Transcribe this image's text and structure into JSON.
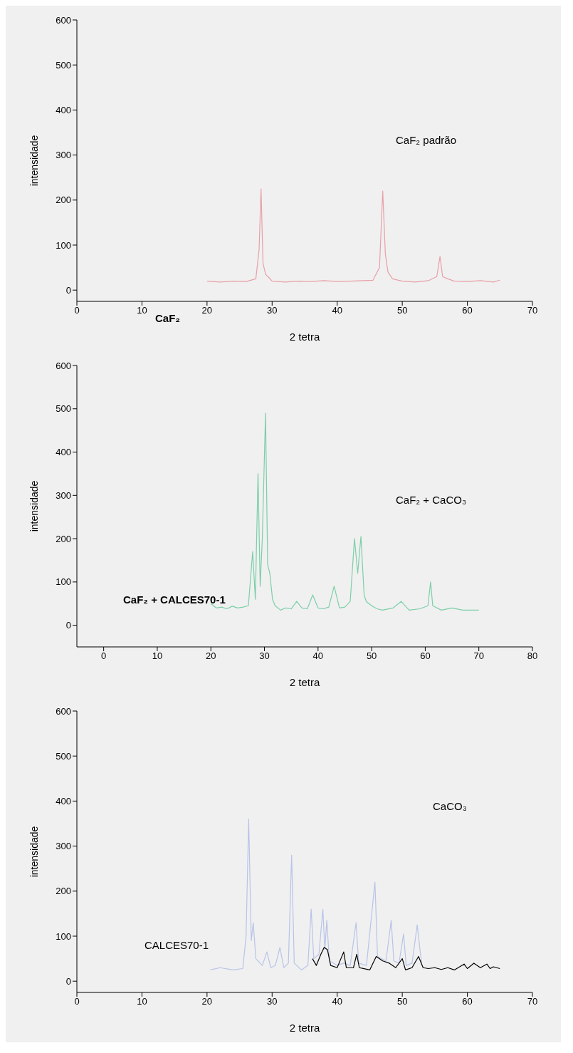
{
  "chart_data": [
    {
      "type": "line",
      "xlabel": "2 tetra",
      "ylabel": "intensidade",
      "xlim": [
        0,
        70
      ],
      "xticks": [
        0,
        10,
        20,
        30,
        40,
        50,
        60,
        70
      ],
      "ylim": [
        -25,
        600
      ],
      "yticks": [
        0,
        100,
        200,
        300,
        400,
        500,
        600
      ],
      "annotations": [
        "CaF₂  padrão",
        "CaF₂"
      ],
      "series": [
        {
          "color": "#e8a0a8",
          "x": [
            20,
            22,
            24,
            26,
            27.5,
            28,
            28.3,
            28.6,
            29,
            29.5,
            30,
            32,
            34,
            36,
            38,
            40,
            42,
            44,
            45.5,
            46.5,
            47,
            47.4,
            47.8,
            48.5,
            50,
            52,
            54,
            55.3,
            55.8,
            56.2,
            57,
            58,
            60,
            62,
            64,
            65
          ],
          "values": [
            20,
            18,
            20,
            19,
            25,
            90,
            225,
            60,
            35,
            28,
            20,
            18,
            20,
            19,
            21,
            19,
            20,
            21,
            22,
            50,
            220,
            80,
            40,
            25,
            20,
            18,
            21,
            30,
            75,
            30,
            25,
            20,
            19,
            21,
            18,
            22
          ]
        }
      ]
    },
    {
      "type": "line",
      "xlabel": "2 tetra",
      "ylabel": "intensidade",
      "xlim": [
        -5,
        80
      ],
      "xticks": [
        0,
        10,
        20,
        30,
        40,
        50,
        60,
        70,
        80
      ],
      "ylim": [
        -50,
        600
      ],
      "yticks": [
        0,
        100,
        200,
        300,
        400,
        500,
        600
      ],
      "annotations": [
        "CaF₂  +  CaCO₃",
        "CaF₂ + CALCES70-1"
      ],
      "series": [
        {
          "color": "#7ccfa8",
          "x": [
            20,
            21,
            22,
            23,
            24,
            25,
            26,
            27,
            27.8,
            28.3,
            28.8,
            29.2,
            29.6,
            30.2,
            30.6,
            31,
            31.5,
            32,
            33,
            34,
            35,
            36,
            37,
            38,
            39,
            40,
            41,
            42,
            43,
            44,
            45,
            46,
            46.8,
            47.4,
            48,
            48.6,
            49,
            50,
            51,
            52,
            54,
            55.5,
            57,
            59,
            60.5,
            61,
            61.4,
            63,
            65,
            67,
            70
          ],
          "values": [
            50,
            40,
            42,
            38,
            44,
            40,
            42,
            45,
            170,
            60,
            350,
            90,
            200,
            490,
            140,
            120,
            60,
            45,
            35,
            40,
            38,
            55,
            40,
            38,
            70,
            40,
            38,
            42,
            90,
            40,
            42,
            55,
            200,
            120,
            205,
            70,
            55,
            45,
            38,
            35,
            40,
            55,
            35,
            38,
            45,
            100,
            45,
            35,
            40,
            35,
            35
          ]
        }
      ]
    },
    {
      "type": "line",
      "xlabel": "2 tetra",
      "ylabel": "intensidade",
      "xlim": [
        0,
        70
      ],
      "xticks": [
        0,
        10,
        20,
        30,
        40,
        50,
        60,
        70
      ],
      "ylim": [
        -25,
        600
      ],
      "yticks": [
        0,
        100,
        200,
        300,
        400,
        500,
        600
      ],
      "annotations": [
        "CaCO₃",
        "CALCES70-1"
      ],
      "series": [
        {
          "color": "#b8c4e8",
          "x": [
            20.5,
            22,
            24,
            25.5,
            26,
            26.4,
            26.8,
            27.1,
            27.5,
            28.5,
            29.2,
            29.8,
            30.5,
            31.2,
            31.8,
            32.5,
            33,
            33.4,
            34.5,
            35.5,
            36,
            36.4,
            37.2,
            37.8,
            38.1,
            38.4,
            38.8,
            40,
            41,
            42,
            42.9,
            43.3,
            44.5,
            45.8,
            46.2,
            47.5,
            48.3,
            48.7,
            49.5,
            50.2,
            50.6,
            51.5,
            52.3,
            52.8,
            53
          ],
          "values": [
            25,
            30,
            25,
            28,
            100,
            360,
            90,
            130,
            50,
            35,
            65,
            30,
            35,
            75,
            30,
            40,
            280,
            40,
            25,
            35,
            160,
            50,
            60,
            160,
            70,
            135,
            45,
            35,
            40,
            35,
            130,
            40,
            35,
            220,
            55,
            45,
            135,
            45,
            40,
            105,
            35,
            40,
            125,
            60,
            40
          ]
        },
        {
          "color": "#000000",
          "x": [
            36.2,
            36.8,
            37.5,
            38,
            38.5,
            39,
            40,
            41,
            41.4,
            42.5,
            43,
            43.4,
            45,
            46,
            47,
            48,
            49,
            50,
            50.5,
            51.5,
            52.5,
            53.2,
            54,
            55,
            56,
            57,
            58,
            59.5,
            60,
            61,
            62,
            63,
            63.5,
            64,
            65
          ],
          "values": [
            50,
            35,
            60,
            75,
            70,
            35,
            30,
            65,
            30,
            30,
            60,
            30,
            25,
            55,
            45,
            40,
            30,
            50,
            25,
            30,
            55,
            30,
            28,
            30,
            26,
            30,
            25,
            38,
            28,
            40,
            30,
            38,
            28,
            32,
            28
          ]
        }
      ]
    }
  ]
}
